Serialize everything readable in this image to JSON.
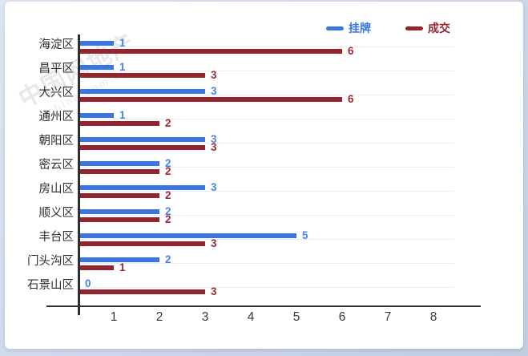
{
  "watermark": {
    "text": "中国网地产",
    "url": "china.com.cn"
  },
  "legend": {
    "position": "top-right"
  },
  "colors": {
    "listed_bar": "#3B74E3",
    "listed_label": "#4583F0",
    "sold_bar": "#96242F",
    "sold_label": "#A02834",
    "axis": "#2E2E2E",
    "gridline": "#ECECEC",
    "category_label": "#2E2E2E",
    "tick_label": "#3A3A3A",
    "card_background": "#FFFFFF",
    "page_background": "#CDD9EA"
  },
  "chart_data": {
    "type": "bar",
    "orientation": "horizontal",
    "title": "",
    "xlabel": "",
    "ylabel": "",
    "categories": [
      "海淀区",
      "昌平区",
      "大兴区",
      "通州区",
      "朝阳区",
      "密云区",
      "房山区",
      "顺义区",
      "丰台区",
      "门头沟区",
      "石景山区"
    ],
    "series": [
      {
        "name": "挂牌",
        "color": "#3B74E3",
        "label_color": "#4583F0",
        "values": [
          1,
          1,
          3,
          1,
          3,
          2,
          3,
          2,
          5,
          2,
          0
        ]
      },
      {
        "name": "成交",
        "color": "#96242F",
        "label_color": "#A02834",
        "values": [
          6,
          3,
          6,
          2,
          3,
          2,
          2,
          2,
          3,
          1,
          3
        ]
      }
    ],
    "xlim": [
      0,
      8
    ],
    "x_ticks": [
      1,
      2,
      3,
      4,
      5,
      6,
      7,
      8
    ],
    "grid": "row-center-lines",
    "legend_position": "top-right",
    "value_labels": "end-of-bar"
  }
}
